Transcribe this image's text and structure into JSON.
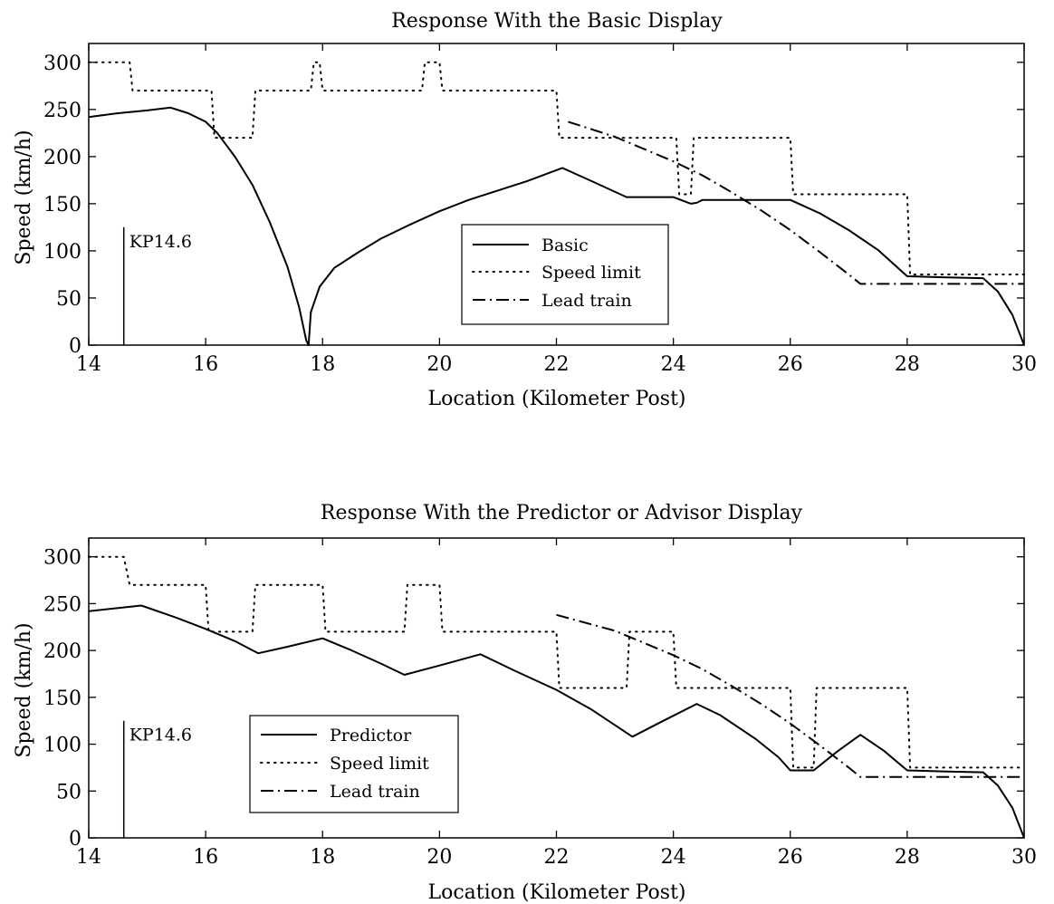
{
  "chart_data": [
    {
      "type": "line",
      "title": "Response With the Basic Display",
      "xlabel": "Location (Kilometer Post)",
      "ylabel": "Speed (km/h)",
      "xlim": [
        14,
        30
      ],
      "ylim": [
        0,
        320
      ],
      "xticks": [
        14,
        16,
        18,
        20,
        22,
        24,
        26,
        28,
        30
      ],
      "yticks": [
        0,
        50,
        100,
        150,
        200,
        250,
        300
      ],
      "grid": false,
      "legend_position": "center",
      "annotation": {
        "text": "KP14.6",
        "x": 14.6,
        "y_top": 125
      },
      "series": [
        {
          "name": "Basic",
          "style": "solid",
          "color": "#000000",
          "x": [
            14.0,
            14.5,
            15.0,
            15.4,
            15.7,
            16.0,
            16.2,
            16.5,
            16.8,
            17.1,
            17.4,
            17.6,
            17.72,
            17.76,
            17.8,
            17.95,
            18.2,
            18.6,
            19.0,
            19.5,
            20.0,
            20.5,
            21.0,
            21.5,
            22.1,
            22.6,
            23.2,
            23.6,
            24.0,
            24.3,
            24.4,
            24.5,
            25.0,
            25.5,
            26.0,
            26.5,
            27.0,
            27.5,
            28.0,
            28.6,
            29.3,
            29.55,
            29.8,
            30.0
          ],
          "y": [
            242,
            246,
            249,
            252,
            246,
            237,
            225,
            200,
            170,
            130,
            83,
            40,
            5,
            0,
            35,
            62,
            82,
            98,
            113,
            128,
            142,
            154,
            164,
            174,
            188,
            174,
            157,
            157,
            157,
            150,
            151,
            154,
            154,
            154,
            154,
            140,
            122,
            101,
            73,
            72,
            71,
            57,
            32,
            0
          ]
        },
        {
          "name": "Speed limit",
          "style": "dotted",
          "color": "#000000",
          "x": [
            14.0,
            14.7,
            14.75,
            16.1,
            16.15,
            16.8,
            16.85,
            17.8,
            17.85,
            17.95,
            18.0,
            19.7,
            19.75,
            20.0,
            20.05,
            22.0,
            22.05,
            24.05,
            24.1,
            24.3,
            24.35,
            26.0,
            26.05,
            28.0,
            28.05,
            30.0
          ],
          "y": [
            300,
            300,
            270,
            270,
            220,
            220,
            270,
            270,
            300,
            300,
            270,
            270,
            300,
            300,
            270,
            270,
            220,
            220,
            160,
            160,
            220,
            220,
            160,
            160,
            75,
            75
          ]
        },
        {
          "name": "Lead train",
          "style": "dashdot",
          "color": "#000000",
          "x": [
            22.2,
            23.0,
            24.0,
            24.5,
            25.0,
            25.5,
            26.0,
            26.5,
            27.0,
            27.2,
            28.0,
            29.0,
            30.0
          ],
          "y": [
            237,
            221,
            195,
            180,
            162,
            143,
            122,
            99,
            75,
            65,
            65,
            65,
            65
          ]
        }
      ]
    },
    {
      "type": "line",
      "title": "Response With the Predictor or Advisor Display",
      "xlabel": "Location (Kilometer Post)",
      "ylabel": "Speed (km/h)",
      "xlim": [
        14,
        30
      ],
      "ylim": [
        0,
        320
      ],
      "xticks": [
        14,
        16,
        18,
        20,
        22,
        24,
        26,
        28,
        30
      ],
      "yticks": [
        0,
        50,
        100,
        150,
        200,
        250,
        300
      ],
      "grid": false,
      "legend_position": "lower-left",
      "annotation": {
        "text": "KP14.6",
        "x": 14.6,
        "y_top": 125
      },
      "series": [
        {
          "name": "Predictor",
          "style": "solid",
          "color": "#000000",
          "x": [
            14.0,
            14.9,
            15.5,
            16.0,
            16.5,
            16.9,
            17.4,
            18.0,
            18.5,
            19.0,
            19.4,
            20.0,
            20.7,
            21.3,
            22.0,
            22.6,
            23.3,
            23.8,
            24.4,
            24.8,
            25.4,
            25.8,
            26.0,
            26.4,
            26.8,
            27.2,
            27.6,
            28.0,
            28.6,
            29.3,
            29.55,
            29.8,
            30.0
          ],
          "y": [
            242,
            248,
            235,
            223,
            210,
            197,
            204,
            213,
            200,
            186,
            174,
            184,
            196,
            178,
            158,
            137,
            108,
            124,
            143,
            131,
            106,
            86,
            72,
            72,
            92,
            110,
            93,
            72,
            71,
            70,
            56,
            32,
            0
          ]
        },
        {
          "name": "Speed limit",
          "style": "dotted",
          "color": "#000000",
          "x": [
            14.0,
            14.6,
            14.7,
            16.0,
            16.05,
            16.8,
            16.85,
            18.0,
            18.05,
            19.4,
            19.45,
            20.0,
            20.05,
            22.0,
            22.05,
            23.2,
            23.25,
            24.0,
            24.05,
            26.0,
            26.05,
            26.4,
            26.45,
            28.0,
            28.05,
            30.0
          ],
          "y": [
            300,
            300,
            270,
            270,
            220,
            220,
            270,
            270,
            220,
            220,
            270,
            270,
            220,
            220,
            160,
            160,
            220,
            220,
            160,
            160,
            75,
            75,
            160,
            160,
            75,
            75
          ]
        },
        {
          "name": "Lead train",
          "style": "dashdot",
          "color": "#000000",
          "x": [
            22.0,
            23.0,
            24.0,
            24.5,
            25.0,
            25.5,
            26.0,
            26.5,
            27.0,
            27.2,
            28.0,
            29.0,
            30.0
          ],
          "y": [
            238,
            221,
            195,
            180,
            162,
            143,
            122,
            99,
            75,
            65,
            65,
            65,
            65
          ]
        }
      ]
    }
  ]
}
